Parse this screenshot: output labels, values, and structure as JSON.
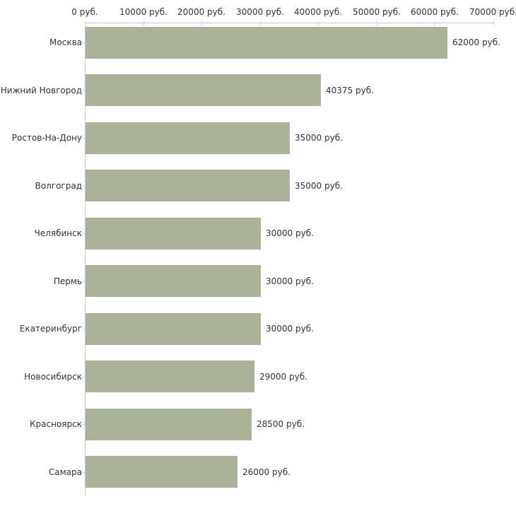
{
  "chart_data": {
    "type": "bar",
    "orientation": "horizontal",
    "title": "",
    "xlabel": "",
    "ylabel": "",
    "categories": [
      "Москва",
      "Нижний Новгород",
      "Ростов-На-Дону",
      "Волгоград",
      "Челябинск",
      "Пермь",
      "Екатеринбург",
      "Новосибирск",
      "Красноярск",
      "Самара"
    ],
    "values": [
      62000,
      40375,
      35000,
      35000,
      30000,
      30000,
      30000,
      29000,
      28500,
      26000
    ],
    "value_labels": [
      "62000 руб.",
      "40375 руб.",
      "35000 руб.",
      "35000 руб.",
      "30000 руб.",
      "30000 руб.",
      "30000 руб.",
      "29000 руб.",
      "28500 руб.",
      "26000 руб."
    ],
    "x_ticks": [
      0,
      10000,
      20000,
      30000,
      40000,
      50000,
      60000,
      70000
    ],
    "x_tick_labels": [
      "0 руб.",
      "10000 руб.",
      "20000 руб.",
      "30000 руб.",
      "40000 руб.",
      "50000 руб.",
      "60000 руб.",
      "70000 руб."
    ],
    "xlim": [
      0,
      70000
    ],
    "grid": false,
    "legend": false,
    "unit": "руб.",
    "colors": {
      "bar": "#abb29a",
      "axis": "#c9c9c9",
      "tick": "#d6d6b8",
      "text": "#333333",
      "background": "#ffffff"
    }
  }
}
